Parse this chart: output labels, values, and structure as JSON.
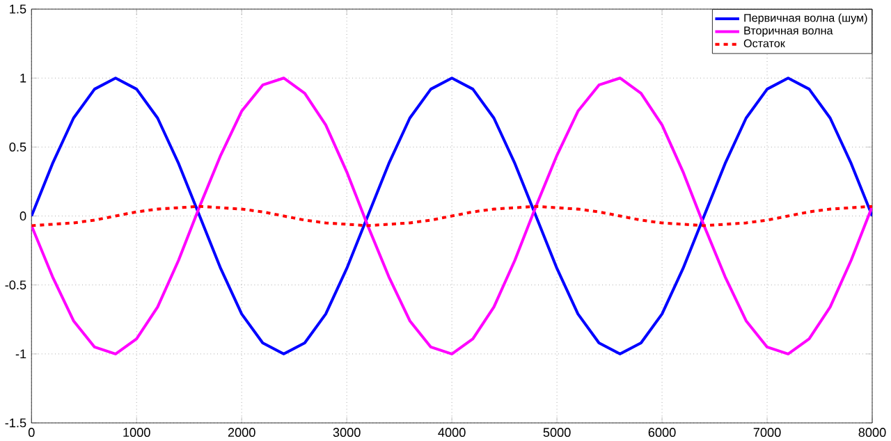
{
  "chart_data": {
    "type": "line",
    "x": [
      0,
      200,
      400,
      600,
      800,
      1000,
      1200,
      1400,
      1600,
      1800,
      2000,
      2200,
      2400,
      2600,
      2800,
      3000,
      3200,
      3400,
      3600,
      3800,
      4000,
      4200,
      4400,
      4600,
      4800,
      5000,
      5200,
      5400,
      5600,
      5800,
      6000,
      6200,
      6400,
      6600,
      6800,
      7000,
      7200,
      7400,
      7600,
      7800,
      8000
    ],
    "series": [
      {
        "name": "Первичная волна (шум)",
        "color": "#0000ff",
        "line_style": "solid",
        "values": [
          0,
          0.38,
          0.71,
          0.92,
          1,
          0.92,
          0.71,
          0.38,
          0,
          -0.38,
          -0.71,
          -0.92,
          -1,
          -0.92,
          -0.71,
          -0.38,
          0,
          0.38,
          0.71,
          0.92,
          1,
          0.92,
          0.71,
          0.38,
          0,
          -0.38,
          -0.71,
          -0.92,
          -1,
          -0.92,
          -0.71,
          -0.38,
          0,
          0.38,
          0.71,
          0.92,
          1,
          0.92,
          0.71,
          0.38,
          0
        ]
      },
      {
        "name": "Вторичная волна",
        "color": "#ff00ff",
        "line_style": "solid",
        "values": [
          -0.07,
          -0.44,
          -0.76,
          -0.95,
          -1,
          -0.89,
          -0.66,
          -0.32,
          0.07,
          0.44,
          0.76,
          0.95,
          1,
          0.89,
          0.66,
          0.32,
          -0.07,
          -0.44,
          -0.76,
          -0.95,
          -1,
          -0.89,
          -0.66,
          -0.32,
          0.07,
          0.44,
          0.76,
          0.95,
          1,
          0.89,
          0.66,
          0.32,
          -0.07,
          -0.44,
          -0.76,
          -0.95,
          -1,
          -0.89,
          -0.66,
          -0.32,
          0.07
        ]
      },
      {
        "name": "Остаток",
        "color": "#ff0000",
        "line_style": "dashed",
        "values": [
          -0.07,
          -0.06,
          -0.05,
          -0.03,
          0,
          0.03,
          0.05,
          0.06,
          0.07,
          0.06,
          0.05,
          0.03,
          0,
          -0.03,
          -0.05,
          -0.06,
          -0.07,
          -0.06,
          -0.05,
          -0.03,
          0,
          0.03,
          0.05,
          0.06,
          0.07,
          0.06,
          0.05,
          0.03,
          0,
          -0.03,
          -0.05,
          -0.06,
          -0.07,
          -0.06,
          -0.05,
          -0.03,
          0,
          0.03,
          0.05,
          0.06,
          0.07
        ]
      }
    ],
    "xlim": [
      0,
      8000
    ],
    "xticks": [
      0,
      1000,
      2000,
      3000,
      4000,
      5000,
      6000,
      7000,
      8000
    ],
    "ylim": [
      -1.5,
      1.5
    ],
    "yticks": [
      -1.5,
      -1,
      -0.5,
      0,
      0.5,
      1,
      1.5
    ],
    "grid": true,
    "legend": "top right"
  }
}
